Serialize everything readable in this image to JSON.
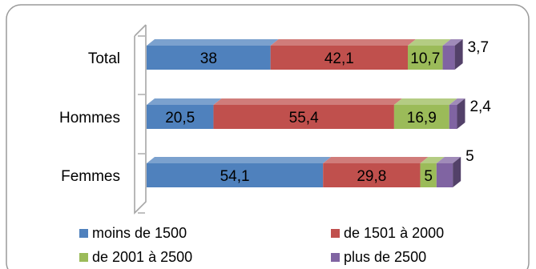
{
  "chart_data": {
    "type": "bar",
    "orientation": "horizontal",
    "stacked": true,
    "style": "3d",
    "categories": [
      "Total",
      "Hommes",
      "Femmes"
    ],
    "series": [
      {
        "name": "moins de 1500",
        "values": [
          38,
          20.5,
          54.1
        ],
        "labels": [
          "38",
          "20,5",
          "54,1"
        ],
        "color": "#4F81BD"
      },
      {
        "name": "de 1501 à 2000",
        "values": [
          42.1,
          55.4,
          29.8
        ],
        "labels": [
          "42,1",
          "55,4",
          "29,8"
        ],
        "color": "#C0504D"
      },
      {
        "name": "de 2001 à 2500",
        "values": [
          10.7,
          16.9,
          5
        ],
        "labels": [
          "10,7",
          "16,9",
          "5"
        ],
        "color": "#9BBB59"
      },
      {
        "name": "plus de 2500",
        "values": [
          3.7,
          2.4,
          5
        ],
        "labels": [
          "3,7",
          "2,4",
          "5"
        ],
        "color": "#8064A2"
      }
    ],
    "xlim": [
      0,
      100
    ],
    "legend_position": "bottom",
    "grid": false
  }
}
